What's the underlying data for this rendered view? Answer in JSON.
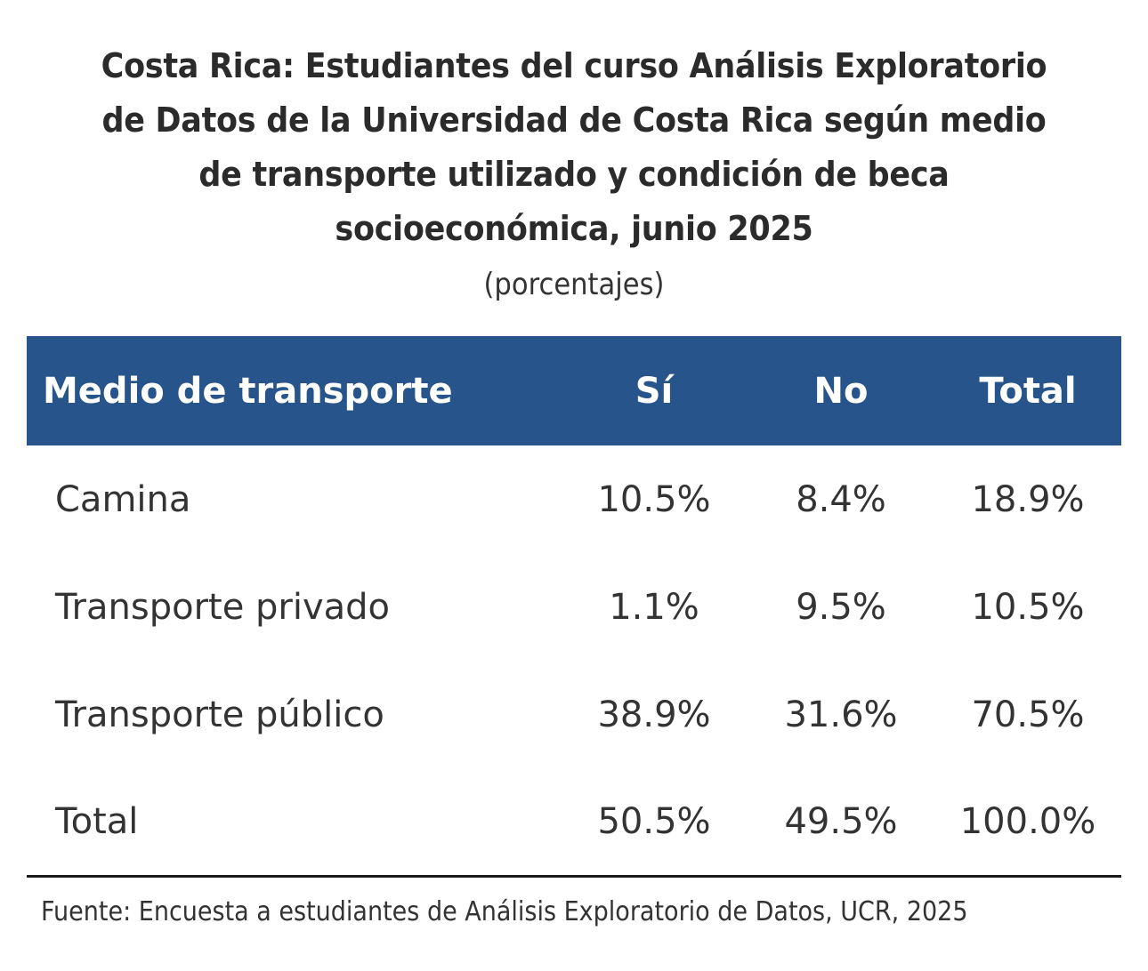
{
  "chart_data": {
    "type": "table",
    "title": "Costa Rica: Estudiantes del curso Análisis Exploratorio de Datos de la Universidad de Costa Rica según medio de transporte utilizado y condición de beca socioeconómica, junio 2025",
    "subtitle": "(porcentajes)",
    "columns": [
      "Medio de transporte",
      "Sí",
      "No",
      "Total"
    ],
    "rows": [
      {
        "label": "Camina",
        "values": [
          "10.5%",
          "8.4%",
          "18.9%"
        ]
      },
      {
        "label": "Transporte privado",
        "values": [
          "1.1%",
          "9.5%",
          "10.5%"
        ]
      },
      {
        "label": "Transporte público",
        "values": [
          "38.9%",
          "31.6%",
          "70.5%"
        ]
      },
      {
        "label": "Total",
        "values": [
          "50.5%",
          "49.5%",
          "100.0%"
        ]
      }
    ],
    "source": "Fuente: Encuesta a estudiantes de Análisis Exploratorio de Datos, UCR, 2025",
    "colors": {
      "header_background": "#27548a",
      "header_text": "#ffffff",
      "body_text": "#333333"
    }
  }
}
